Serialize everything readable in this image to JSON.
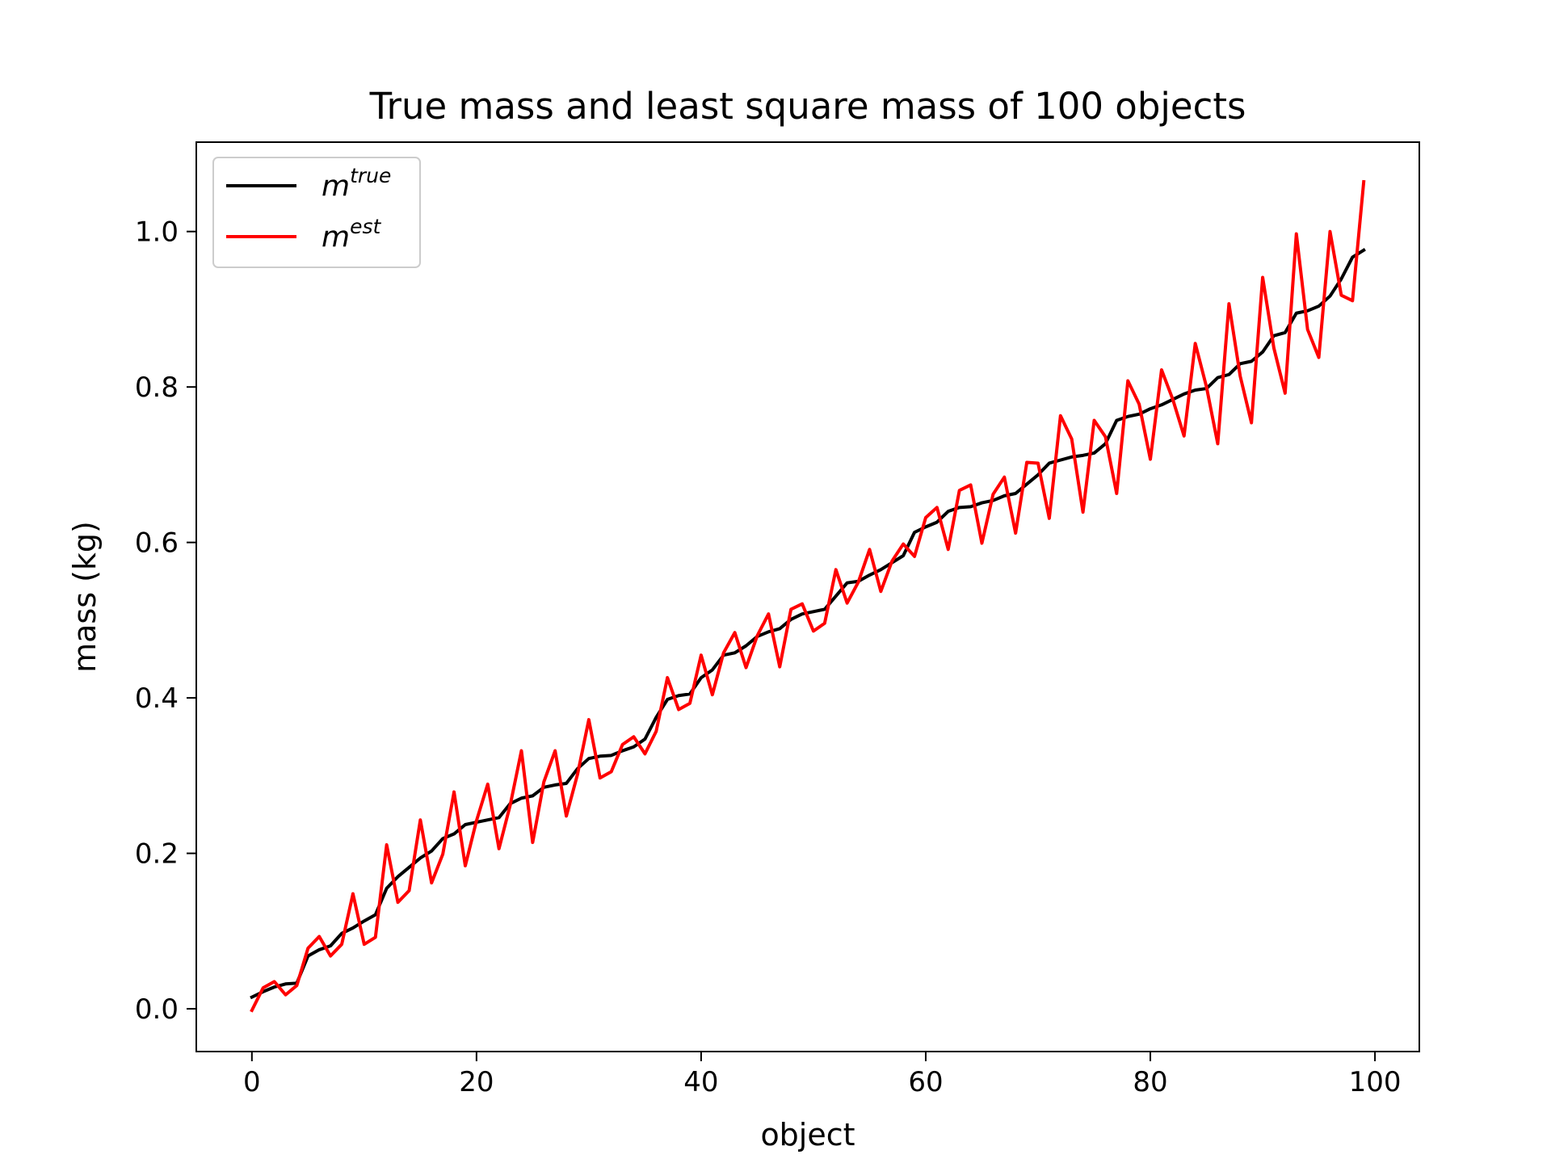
{
  "chart_data": {
    "type": "line",
    "title": "True mass and least square mass of 100 objects",
    "xlabel": "object",
    "ylabel": "mass (kg)",
    "xlim": [
      -4.95,
      103.95
    ],
    "ylim": [
      -0.055,
      1.115
    ],
    "xticks": [
      0,
      20,
      40,
      60,
      80,
      100
    ],
    "yticks": [
      0.0,
      0.2,
      0.4,
      0.6,
      0.8,
      1.0
    ],
    "xtick_labels": [
      "0",
      "20",
      "40",
      "60",
      "80",
      "100"
    ],
    "ytick_labels": [
      "0.0",
      "0.2",
      "0.4",
      "0.6",
      "0.8",
      "1.0"
    ],
    "grid": false,
    "legend": "upper-left",
    "series": [
      {
        "name": "m",
        "name_sup": "true",
        "color": "#000000",
        "x": [
          0,
          1,
          2,
          3,
          4,
          5,
          6,
          7,
          8,
          9,
          10,
          11,
          12,
          13,
          14,
          15,
          16,
          17,
          18,
          19,
          20,
          21,
          22,
          23,
          24,
          25,
          26,
          27,
          28,
          29,
          30,
          31,
          32,
          33,
          34,
          35,
          36,
          37,
          38,
          39,
          40,
          41,
          42,
          43,
          44,
          45,
          46,
          47,
          48,
          49,
          50,
          51,
          52,
          53,
          54,
          55,
          56,
          57,
          58,
          59,
          60,
          61,
          62,
          63,
          64,
          65,
          66,
          67,
          68,
          69,
          70,
          71,
          72,
          73,
          74,
          75,
          76,
          77,
          78,
          79,
          80,
          81,
          82,
          83,
          84,
          85,
          86,
          87,
          88,
          89,
          90,
          91,
          92,
          93,
          94,
          95,
          96,
          97,
          98,
          99
        ],
        "values": [
          0.015,
          0.022,
          0.028,
          0.032,
          0.033,
          0.068,
          0.076,
          0.081,
          0.097,
          0.104,
          0.113,
          0.121,
          0.155,
          0.17,
          0.182,
          0.194,
          0.203,
          0.219,
          0.225,
          0.237,
          0.24,
          0.243,
          0.246,
          0.264,
          0.271,
          0.274,
          0.285,
          0.288,
          0.29,
          0.309,
          0.322,
          0.325,
          0.326,
          0.332,
          0.337,
          0.347,
          0.375,
          0.398,
          0.403,
          0.405,
          0.426,
          0.436,
          0.455,
          0.458,
          0.467,
          0.479,
          0.485,
          0.489,
          0.501,
          0.508,
          0.511,
          0.514,
          0.531,
          0.548,
          0.55,
          0.558,
          0.565,
          0.574,
          0.583,
          0.613,
          0.62,
          0.626,
          0.64,
          0.645,
          0.646,
          0.651,
          0.654,
          0.66,
          0.663,
          0.675,
          0.687,
          0.702,
          0.706,
          0.71,
          0.712,
          0.715,
          0.727,
          0.757,
          0.762,
          0.765,
          0.772,
          0.777,
          0.784,
          0.791,
          0.796,
          0.798,
          0.812,
          0.816,
          0.83,
          0.833,
          0.845,
          0.866,
          0.87,
          0.895,
          0.898,
          0.904,
          0.917,
          0.939,
          0.967,
          0.976
        ]
      },
      {
        "name": "m",
        "name_sup": "est",
        "color": "#ff0000",
        "x": [
          0,
          1,
          2,
          3,
          4,
          5,
          6,
          7,
          8,
          9,
          10,
          11,
          12,
          13,
          14,
          15,
          16,
          17,
          18,
          19,
          20,
          21,
          22,
          23,
          24,
          25,
          26,
          27,
          28,
          29,
          30,
          31,
          32,
          33,
          34,
          35,
          36,
          37,
          38,
          39,
          40,
          41,
          42,
          43,
          44,
          45,
          46,
          47,
          48,
          49,
          50,
          51,
          52,
          53,
          54,
          55,
          56,
          57,
          58,
          59,
          60,
          61,
          62,
          63,
          64,
          65,
          66,
          67,
          68,
          69,
          70,
          71,
          72,
          73,
          74,
          75,
          76,
          77,
          78,
          79,
          80,
          81,
          82,
          83,
          84,
          85,
          86,
          87,
          88,
          89,
          90,
          91,
          92,
          93,
          94,
          95,
          96,
          97,
          98,
          99
        ],
        "values": [
          -0.002,
          0.027,
          0.035,
          0.018,
          0.03,
          0.078,
          0.093,
          0.068,
          0.083,
          0.148,
          0.083,
          0.092,
          0.211,
          0.137,
          0.152,
          0.243,
          0.162,
          0.199,
          0.279,
          0.184,
          0.242,
          0.289,
          0.206,
          0.262,
          0.332,
          0.214,
          0.292,
          0.332,
          0.248,
          0.302,
          0.372,
          0.297,
          0.305,
          0.34,
          0.35,
          0.328,
          0.357,
          0.426,
          0.385,
          0.393,
          0.455,
          0.404,
          0.458,
          0.484,
          0.439,
          0.48,
          0.508,
          0.44,
          0.514,
          0.521,
          0.486,
          0.496,
          0.565,
          0.522,
          0.549,
          0.591,
          0.537,
          0.576,
          0.598,
          0.582,
          0.632,
          0.645,
          0.591,
          0.667,
          0.674,
          0.599,
          0.662,
          0.684,
          0.612,
          0.703,
          0.702,
          0.631,
          0.763,
          0.733,
          0.639,
          0.757,
          0.736,
          0.663,
          0.808,
          0.778,
          0.707,
          0.822,
          0.784,
          0.737,
          0.856,
          0.8,
          0.727,
          0.907,
          0.814,
          0.754,
          0.941,
          0.85,
          0.792,
          0.997,
          0.874,
          0.838,
          1.0,
          0.918,
          0.911,
          1.064
        ]
      }
    ]
  }
}
